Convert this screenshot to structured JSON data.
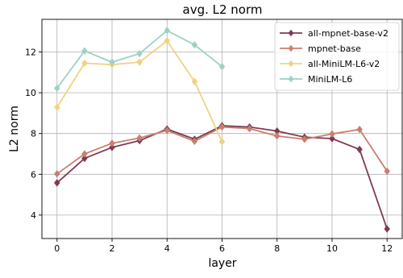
{
  "chart_data": {
    "type": "line",
    "title": "avg. L2 norm",
    "xlabel": "layer",
    "ylabel": "L2 norm",
    "xlim": [
      -0.55,
      12.55
    ],
    "ylim": [
      2.85,
      13.6
    ],
    "xticks": [
      0,
      2,
      4,
      6,
      8,
      10,
      12
    ],
    "yticks": [
      4,
      6,
      8,
      10,
      12
    ],
    "grid": true,
    "legend_position": "top-right",
    "series": [
      {
        "name": "all-mpnet-base-v2",
        "color": "#7f3b52",
        "marker": "diamond",
        "x": [
          0,
          1,
          2,
          3,
          4,
          5,
          6,
          7,
          8,
          9,
          10,
          11,
          12
        ],
        "y": [
          5.58,
          6.78,
          7.32,
          7.65,
          8.22,
          7.72,
          8.38,
          8.32,
          8.12,
          7.82,
          7.75,
          7.22,
          3.32
        ]
      },
      {
        "name": "mpnet-base",
        "color": "#c97f6e",
        "marker": "diamond",
        "x": [
          0,
          1,
          2,
          3,
          4,
          5,
          6,
          7,
          8,
          9,
          10,
          11,
          12
        ],
        "y": [
          6.02,
          7.0,
          7.52,
          7.78,
          8.15,
          7.62,
          8.32,
          8.24,
          7.88,
          7.72,
          7.98,
          8.2,
          6.15
        ]
      },
      {
        "name": "all-MiniLM-L6-v2",
        "color": "#f0d283",
        "marker": "diamond",
        "x": [
          0,
          1,
          2,
          3,
          4,
          5,
          6
        ],
        "y": [
          9.28,
          11.45,
          11.38,
          11.5,
          12.55,
          10.55,
          7.6
        ]
      },
      {
        "name": "MiniLM-L6",
        "color": "#9dd1c6",
        "marker": "diamond",
        "x": [
          0,
          1,
          2,
          3,
          4,
          5,
          6
        ],
        "y": [
          10.22,
          12.05,
          11.5,
          11.92,
          13.05,
          12.35,
          11.28
        ]
      }
    ]
  }
}
